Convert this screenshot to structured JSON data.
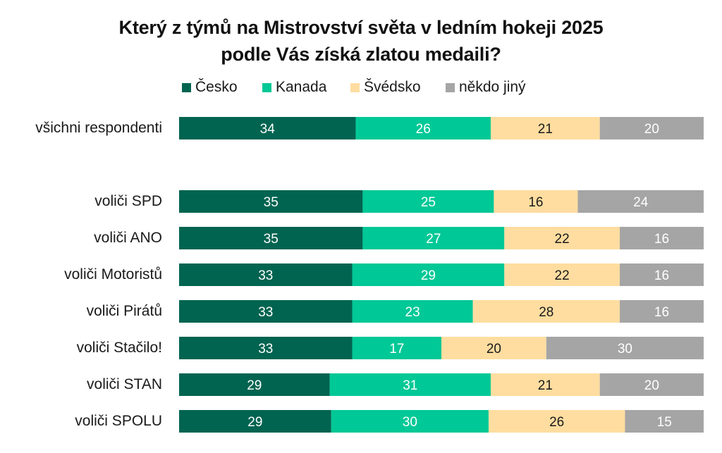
{
  "chart_data": {
    "type": "bar",
    "orientation": "horizontal",
    "stacked": true,
    "normalized": true,
    "title": "Který z týmů na Mistrovství světa v ledním hokeji 2025 podle Vás získá zlatou medaili?",
    "title_lines": [
      "Který z týmů na Mistrovství světa v ledním hokeji 2025",
      "podle Vás získá zlatou medaili?"
    ],
    "xlabel": "",
    "ylabel": "",
    "legend_position": "top",
    "grid": false,
    "categories": [
      "všichni respondenti",
      "voliči SPD",
      "voliči ANO",
      "voliči Motoristů",
      "voliči Pirátů",
      "voliči Stačilo!",
      "voliči STAN",
      "voliči SPOLU"
    ],
    "series": [
      {
        "name": "Česko",
        "color": "#006450",
        "label_color": "#ffffff",
        "values": [
          34,
          35,
          35,
          33,
          33,
          33,
          29,
          29
        ]
      },
      {
        "name": "Kanada",
        "color": "#00C896",
        "label_color": "#ffffff",
        "values": [
          26,
          25,
          27,
          29,
          23,
          17,
          31,
          30
        ]
      },
      {
        "name": "Švédsko",
        "color": "#FFDDA0",
        "label_color": "#1a1a1a",
        "values": [
          21,
          16,
          22,
          22,
          28,
          20,
          21,
          26
        ]
      },
      {
        "name": "někdo jiný",
        "color": "#A5A5A5",
        "label_color": "#ffffff",
        "values": [
          20,
          24,
          16,
          16,
          16,
          30,
          20,
          15
        ]
      }
    ]
  }
}
